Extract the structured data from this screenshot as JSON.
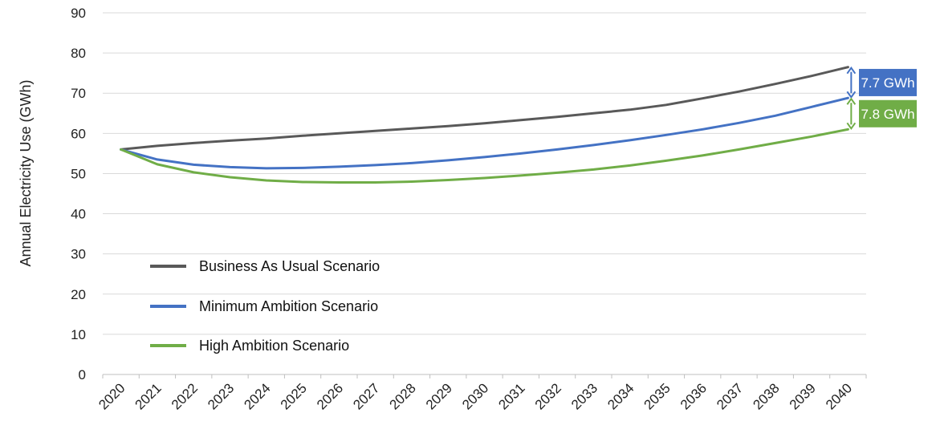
{
  "chart_data": {
    "type": "line",
    "title": "",
    "xlabel": "",
    "ylabel": "Annual Electricity Use (GWh)",
    "categories": [
      "2020",
      "2021",
      "2022",
      "2023",
      "2024",
      "2025",
      "2026",
      "2027",
      "2028",
      "2029",
      "2030",
      "2031",
      "2032",
      "2033",
      "2034",
      "2035",
      "2036",
      "2037",
      "2038",
      "2039",
      "2040"
    ],
    "ylim": [
      0,
      90
    ],
    "yticks": [
      0,
      10,
      20,
      30,
      40,
      50,
      60,
      70,
      80,
      90
    ],
    "grid": true,
    "legend_position": "lower-left",
    "series": [
      {
        "name": "Business As Usual Scenario",
        "color": "#595959",
        "values": [
          56.0,
          56.9,
          57.6,
          58.2,
          58.7,
          59.4,
          60.0,
          60.6,
          61.2,
          61.8,
          62.5,
          63.3,
          64.1,
          65.0,
          65.9,
          67.1,
          68.7,
          70.4,
          72.3,
          74.3,
          76.5
        ]
      },
      {
        "name": "Minimum Ambition Scenario",
        "color": "#4472C4",
        "values": [
          56.0,
          53.5,
          52.2,
          51.6,
          51.3,
          51.4,
          51.7,
          52.1,
          52.6,
          53.3,
          54.1,
          55.0,
          56.0,
          57.1,
          58.3,
          59.6,
          61.0,
          62.6,
          64.4,
          66.6,
          68.8
        ]
      },
      {
        "name": "High Ambition Scenario",
        "color": "#70AD47",
        "values": [
          56.0,
          52.3,
          50.3,
          49.1,
          48.3,
          47.9,
          47.8,
          47.8,
          48.0,
          48.4,
          48.9,
          49.5,
          50.2,
          51.0,
          52.0,
          53.2,
          54.5,
          56.0,
          57.6,
          59.2,
          61.0
        ]
      }
    ],
    "annotations": [
      {
        "text": "7.7 GWh",
        "from": 76.5,
        "to": 68.8,
        "color": "#4472C4"
      },
      {
        "text": "7.8 GWh",
        "from": 68.8,
        "to": 61.0,
        "color": "#70AD47"
      }
    ]
  }
}
